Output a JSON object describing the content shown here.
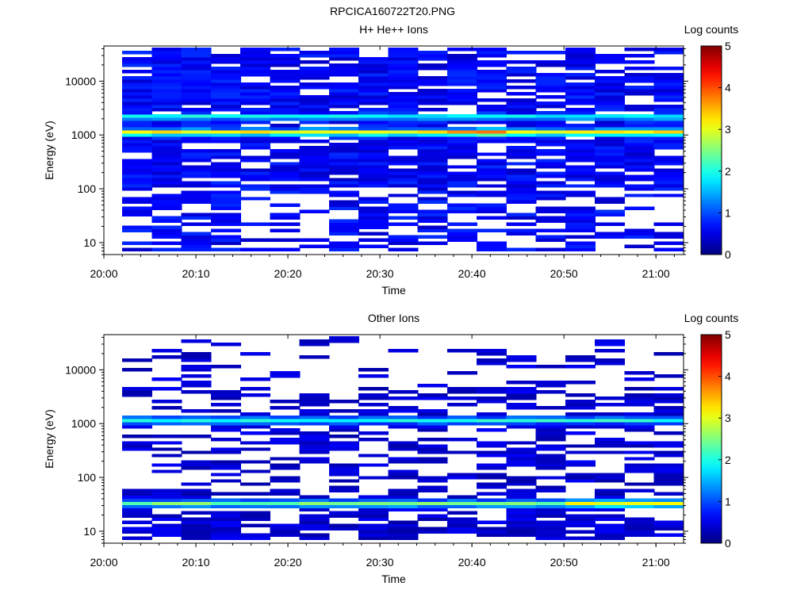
{
  "figure_title": "RPCICA160722T20.PNG",
  "chart_data": [
    {
      "type": "heatmap",
      "title": "H+ He++ Ions",
      "xlabel": "Time",
      "ylabel": "Energy (eV)",
      "colorbar_label": "Log counts",
      "x_ticks": [
        "20:00",
        "20:10",
        "20:20",
        "20:30",
        "20:40",
        "20:50",
        "21:00"
      ],
      "x_range": [
        "20:00",
        "21:03"
      ],
      "y_ticks": [
        "10",
        "100",
        "1000",
        "10000"
      ],
      "y_scale": "log",
      "y_range": [
        6,
        45000
      ],
      "colorbar_ticks": [
        "0",
        "1",
        "2",
        "3",
        "4",
        "5"
      ],
      "colorbar_range": [
        0,
        5
      ],
      "data_start": "20:02",
      "colormap": "jet",
      "feature_note": "Bright band near 1000-1300 eV (log counts ~3, peak ~3.7 near 20:38-20:42), secondary band ~2200 eV (~1.8)"
    },
    {
      "type": "heatmap",
      "title": "Other Ions",
      "xlabel": "Time",
      "ylabel": "Energy (eV)",
      "colorbar_label": "Log counts",
      "x_ticks": [
        "20:00",
        "20:10",
        "20:20",
        "20:30",
        "20:40",
        "20:50",
        "21:00"
      ],
      "x_range": [
        "20:00",
        "21:03"
      ],
      "y_ticks": [
        "10",
        "100",
        "1000",
        "10000"
      ],
      "y_scale": "log",
      "y_range": [
        6,
        45000
      ],
      "colorbar_ticks": [
        "0",
        "1",
        "2",
        "3",
        "4",
        "5"
      ],
      "colorbar_range": [
        0,
        5
      ],
      "data_start": "20:02",
      "colormap": "jet",
      "feature_note": "Band near 1000-1300 eV (log counts ~1.8), low-energy band ~30-40 eV (~2.3, rising to ~3 after 20:50)"
    }
  ]
}
